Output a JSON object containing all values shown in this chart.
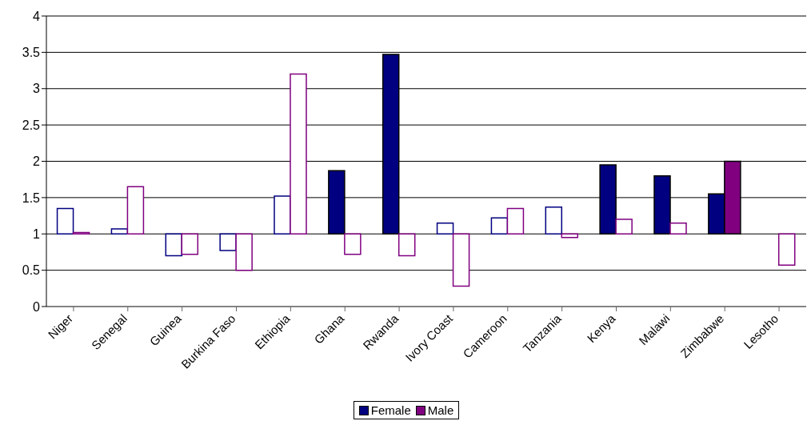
{
  "chart_data": {
    "type": "bar",
    "categories": [
      "Niger",
      "Senegal",
      "Guinea",
      "Burkina Faso",
      "Ethiopia",
      "Ghana",
      "Rwanda",
      "Ivory Coast",
      "Cameroon",
      "Tanzania",
      "Kenya",
      "Malawi",
      "Zimbabwe",
      "Lesotho"
    ],
    "series": [
      {
        "name": "Female",
        "color": "#000080",
        "values": [
          0.35,
          0.07,
          -0.3,
          -0.23,
          0.52,
          0.87,
          2.47,
          0.15,
          0.22,
          0.37,
          0.95,
          0.8,
          0.55,
          null
        ],
        "base": [
          1,
          1,
          1,
          1,
          1,
          1,
          1,
          1,
          1,
          1,
          1,
          1,
          1,
          null
        ],
        "colors": [
          "#ffffff",
          "#ffffff",
          "#ffffff",
          "#ffffff",
          "#ffffff",
          "#000080",
          "#000080",
          "#ffffff",
          "#ffffff",
          "#ffffff",
          "#000080",
          "#000080",
          "#000080",
          "#ffffff"
        ]
      },
      {
        "name": "Male",
        "color": "#800080",
        "values": [
          0.02,
          0.65,
          -0.28,
          -0.5,
          2.2,
          -0.28,
          -0.3,
          -0.72,
          0.35,
          -0.05,
          0.2,
          0.15,
          1.0,
          -0.43
        ],
        "base": [
          1,
          1,
          1,
          1,
          1,
          1,
          1,
          1,
          1,
          1,
          1,
          1,
          1,
          1
        ],
        "colors": [
          "#ffffff",
          "#ffffff",
          "#ffffff",
          "#ffffff",
          "#ffffff",
          "#ffffff",
          "#ffffff",
          "#ffffff",
          "#ffffff",
          "#ffffff",
          "#ffffff",
          "#ffffff",
          "#800080",
          "#ffffff"
        ]
      }
    ],
    "ylim": [
      0,
      4
    ],
    "yticks": [
      0,
      0.5,
      1,
      1.5,
      2,
      2.5,
      3,
      3.5,
      4
    ],
    "grid": "y",
    "legend": "bottom"
  }
}
